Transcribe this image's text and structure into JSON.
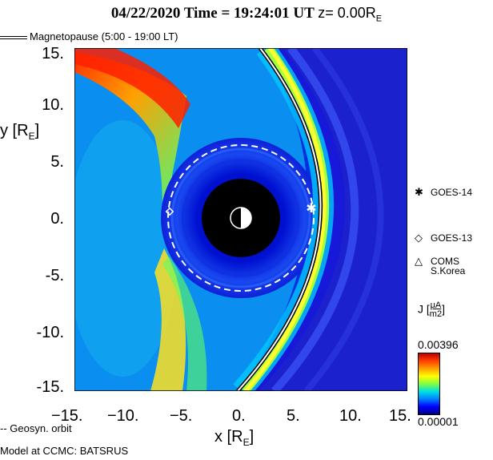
{
  "header": {
    "date_time": "04/22/2020 Time = 19:24:01 UT",
    "z_value": "z= 0.00R",
    "z_sub": "E"
  },
  "magnetopause_legend": "Magnetopause (5:00 - 19:00 LT)",
  "legend": {
    "goes14": "GOES-14",
    "goes13": "GOES-13",
    "coms": "COMS",
    "coms_sub": "S.Korea"
  },
  "geosyn_orbit": "-- Geosyn. orbit",
  "model": "Model at CCMC: BATSRUS",
  "colorbar": {
    "label": "J",
    "unit_num": "μA",
    "unit_den": "m2",
    "max": "0.00396",
    "min": "0.00001"
  },
  "colors": {
    "background_field": "#1010d8",
    "earth_shadow": "#000000",
    "magnetopause": "#000000",
    "geosyn_orbit": "#ffffff"
  },
  "chart_data": {
    "type": "heatmap",
    "title": "04/22/2020 Time = 19:24:01 UT z= 0.00RE",
    "xlabel": "x [RE]",
    "ylabel": "y [RE]",
    "xlim": [
      15,
      -15
    ],
    "ylim": [
      -15,
      15
    ],
    "x_ticks": [
      "15.",
      "10.",
      "5.",
      "0.",
      "-5.",
      "-10.",
      "-15."
    ],
    "y_ticks": [
      "15.",
      "10.",
      "5.",
      "0.",
      "-5.",
      "-10.",
      "-15."
    ],
    "colorbar_range": [
      1e-05,
      0.00396
    ],
    "geosynchronous_orbit_radius": 6.6,
    "inner_boundary_radius": 3.5,
    "magnetopause_subsolar_x": 10.8,
    "satellites": [
      {
        "name": "GOES-14",
        "marker": "asterisk",
        "x": 6.5,
        "y": 1.0
      },
      {
        "name": "GOES-13",
        "marker": "diamond",
        "x": -6.2,
        "y": 0.6
      },
      {
        "name": "COMS S.Korea",
        "marker": "triangle",
        "x": null,
        "y": null
      }
    ]
  }
}
